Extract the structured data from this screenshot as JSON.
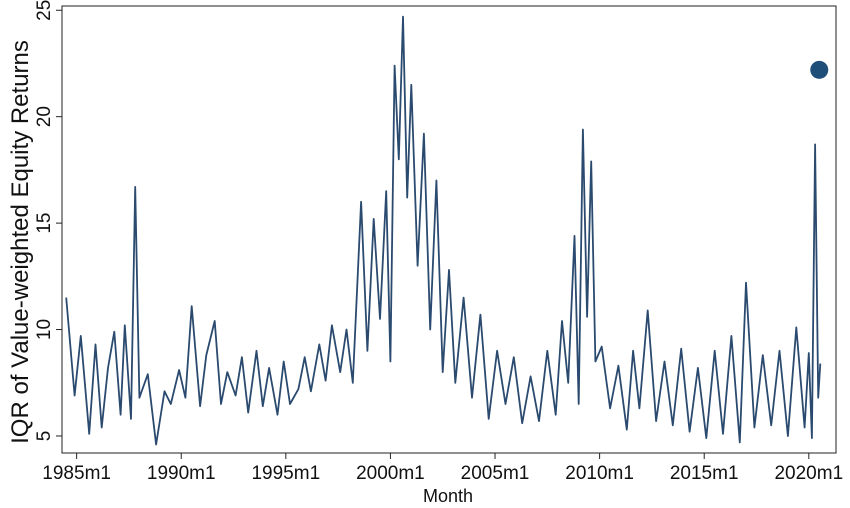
{
  "chart_data": {
    "type": "line",
    "title": "",
    "xlabel": "Month",
    "ylabel": "IQR of Value-weighted Equity Returns",
    "xlim": [
      1984.3,
      2021.3
    ],
    "ylim": [
      4.2,
      25.2
    ],
    "x_ticks": [
      {
        "value": 1985,
        "label": "1985m1"
      },
      {
        "value": 1990,
        "label": "1990m1"
      },
      {
        "value": 1995,
        "label": "1995m1"
      },
      {
        "value": 2000,
        "label": "2000m1"
      },
      {
        "value": 2005,
        "label": "2005m1"
      },
      {
        "value": 2010,
        "label": "2010m1"
      },
      {
        "value": 2015,
        "label": "2015m1"
      },
      {
        "value": 2020,
        "label": "2020m1"
      }
    ],
    "y_ticks": [
      {
        "value": 5,
        "label": "5"
      },
      {
        "value": 10,
        "label": "10"
      },
      {
        "value": 15,
        "label": "15"
      },
      {
        "value": 20,
        "label": "20"
      },
      {
        "value": 25,
        "label": "25"
      }
    ],
    "grid": false,
    "line_color": "#2b4a6f",
    "marker_color": "#1f4e79",
    "series": [
      {
        "x": [
          1984.5,
          1984.9,
          1985.2,
          1985.6,
          1985.9,
          1986.2,
          1986.5,
          1986.8,
          1987.1,
          1987.3,
          1987.6,
          1987.8,
          1988.0,
          1988.4,
          1988.8,
          1989.2,
          1989.5,
          1989.9,
          1990.2,
          1990.5,
          1990.9,
          1991.2,
          1991.6,
          1991.9,
          1992.2,
          1992.6,
          1992.9,
          1993.2,
          1993.6,
          1993.9,
          1994.2,
          1994.6,
          1994.9,
          1995.2,
          1995.6,
          1995.9,
          1996.2,
          1996.6,
          1996.9,
          1997.2,
          1997.6,
          1997.9,
          1998.2,
          1998.6,
          1998.9,
          1999.2,
          1999.5,
          1999.8,
          2000.0,
          2000.2,
          2000.4,
          2000.6,
          2000.8,
          2001.0,
          2001.3,
          2001.6,
          2001.9,
          2002.2,
          2002.5,
          2002.8,
          2003.1,
          2003.5,
          2003.9,
          2004.3,
          2004.7,
          2005.1,
          2005.5,
          2005.9,
          2006.3,
          2006.7,
          2007.1,
          2007.5,
          2007.9,
          2008.2,
          2008.5,
          2008.8,
          2009.0,
          2009.2,
          2009.4,
          2009.6,
          2009.8,
          2010.1,
          2010.5,
          2010.9,
          2011.3,
          2011.6,
          2011.9,
          2012.3,
          2012.7,
          2013.1,
          2013.5,
          2013.9,
          2014.3,
          2014.7,
          2015.1,
          2015.5,
          2015.9,
          2016.3,
          2016.7,
          2017.0,
          2017.4,
          2017.8,
          2018.2,
          2018.6,
          2019.0,
          2019.4,
          2019.8,
          2020.0,
          2020.15,
          2020.3,
          2020.45,
          2020.55
        ],
        "values": [
          11.5,
          6.9,
          9.7,
          5.1,
          9.3,
          5.4,
          8.2,
          9.9,
          6.0,
          10.2,
          5.8,
          16.7,
          6.8,
          7.9,
          4.6,
          7.1,
          6.5,
          8.1,
          6.8,
          11.1,
          6.4,
          8.8,
          10.4,
          6.5,
          8.0,
          6.9,
          8.7,
          6.1,
          9.0,
          6.4,
          8.2,
          6.0,
          8.5,
          6.5,
          7.2,
          8.7,
          7.1,
          9.3,
          7.6,
          10.2,
          8.0,
          10.0,
          7.5,
          16.0,
          9.0,
          15.2,
          10.5,
          16.5,
          8.5,
          22.4,
          18.0,
          24.7,
          16.2,
          21.5,
          13.0,
          19.2,
          10.0,
          17.0,
          8.0,
          12.8,
          7.5,
          11.5,
          6.8,
          10.7,
          5.8,
          9.0,
          6.5,
          8.7,
          5.6,
          7.8,
          5.7,
          9.0,
          6.0,
          10.4,
          7.5,
          14.4,
          6.5,
          19.4,
          10.6,
          17.9,
          8.5,
          9.2,
          6.3,
          8.3,
          5.3,
          9.0,
          6.3,
          10.9,
          5.7,
          8.5,
          5.5,
          9.1,
          5.2,
          8.2,
          4.9,
          9.0,
          5.1,
          9.7,
          4.7,
          12.2,
          5.4,
          8.8,
          5.5,
          9.0,
          5.0,
          10.1,
          5.4,
          8.9,
          4.9,
          18.7,
          6.8,
          8.4
        ]
      }
    ],
    "highlight_point": {
      "x": 2020.5,
      "y": 22.2
    }
  }
}
